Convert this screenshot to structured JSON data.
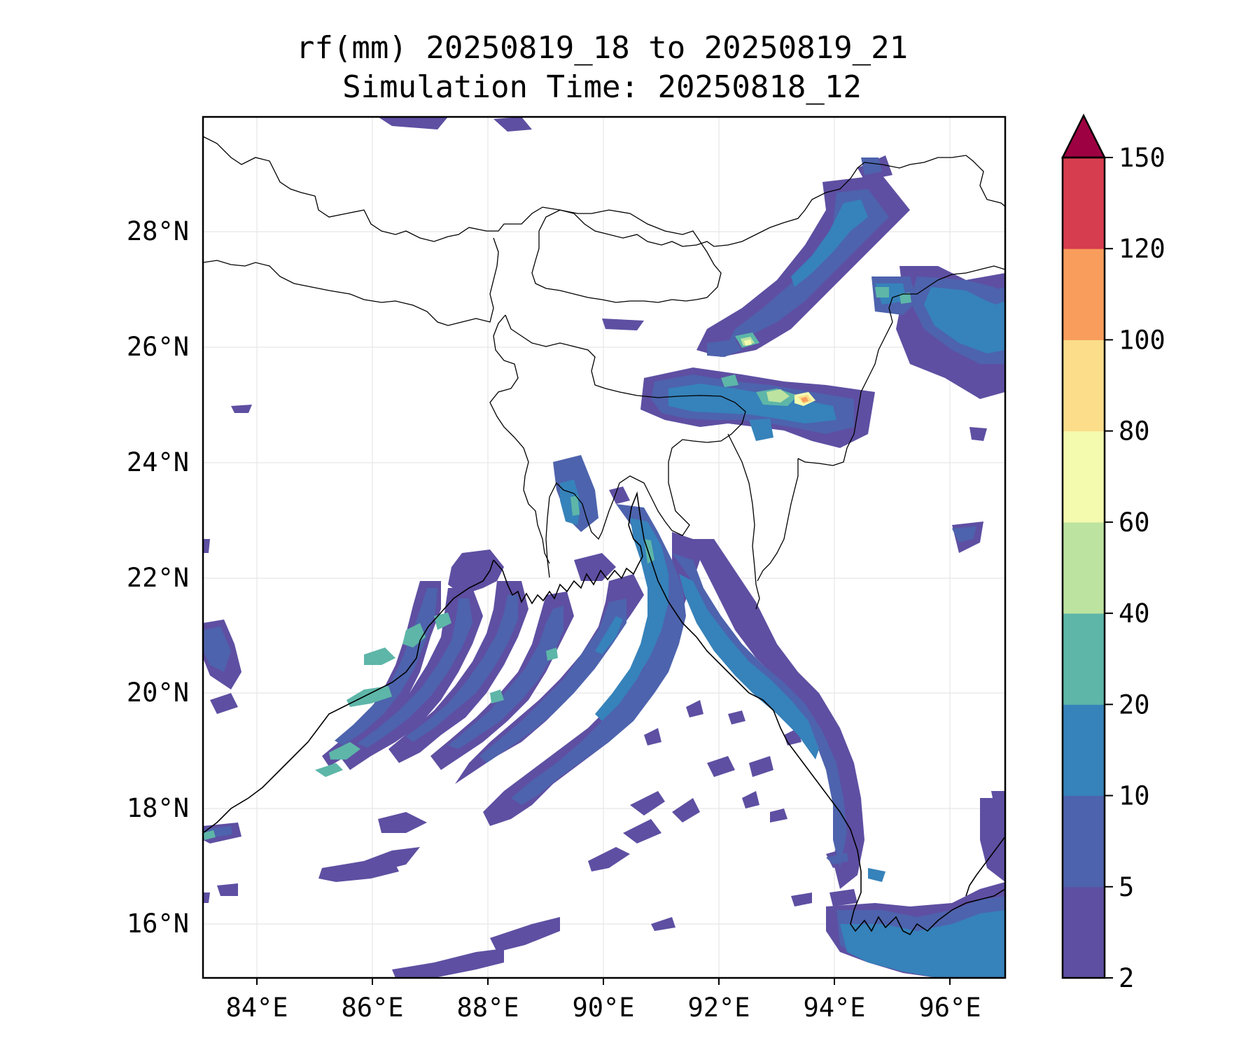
{
  "title_line1": "rf(mm) 20250819_18 to 20250819_21",
  "title_line2": "Simulation Time: 20250818_12",
  "lon_ticks": [
    "84°E",
    "86°E",
    "88°E",
    "90°E",
    "92°E",
    "94°E",
    "96°E"
  ],
  "lat_ticks": [
    "28°N",
    "26°N",
    "24°N",
    "22°N",
    "20°N",
    "18°N",
    "16°N"
  ],
  "colorbar": {
    "labels": [
      "2",
      "5",
      "10",
      "20",
      "40",
      "60",
      "80",
      "100",
      "120",
      "150"
    ],
    "colors": [
      "#5e4fa2",
      "#4d63ad",
      "#3682ba",
      "#5db6a8",
      "#bde3a0",
      "#f4faae",
      "#fbdd8a",
      "#f99d5c",
      "#d63d4f",
      "#9e0142"
    ],
    "extend": "max"
  },
  "map_extent": {
    "lon": [
      83.1,
      97.0
    ],
    "lat": [
      15.0,
      29.9
    ]
  },
  "grid": true
}
